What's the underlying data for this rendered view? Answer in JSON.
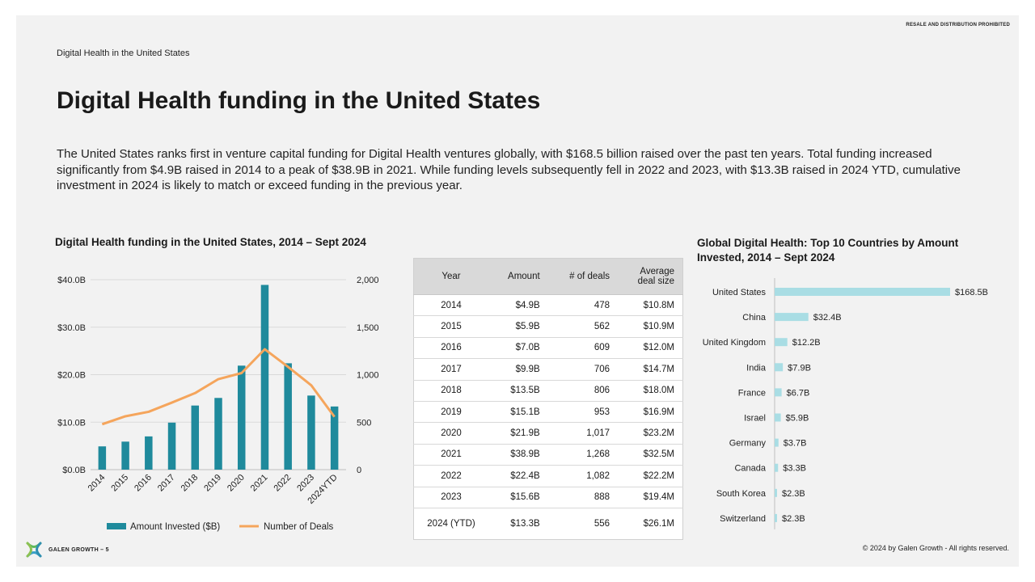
{
  "header": {
    "notice": "RESALE AND DISTRIBUTION PROHIBITED",
    "breadcrumb": "Digital Health in the United States",
    "title": "Digital Health funding in the United States",
    "description": "The United States ranks first in venture capital funding for Digital Health ventures globally, with $168.5 billion raised over the past ten years. Total funding increased significantly from $4.9B raised in 2014 to a peak of $38.9B in 2021. While funding levels subsequently fell in 2022 and 2023, with $13.3B raised in 2024 YTD, cumulative investment in 2024 is likely to match or exceed funding in the previous year."
  },
  "table": {
    "headers": [
      "Year",
      "Amount",
      "# of deals",
      "Average deal size"
    ],
    "rows": [
      [
        "2014",
        "$4.9B",
        "478",
        "$10.8M"
      ],
      [
        "2015",
        "$5.9B",
        "562",
        "$10.9M"
      ],
      [
        "2016",
        "$7.0B",
        "609",
        "$12.0M"
      ],
      [
        "2017",
        "$9.9B",
        "706",
        "$14.7M"
      ],
      [
        "2018",
        "$13.5B",
        "806",
        "$18.0M"
      ],
      [
        "2019",
        "$15.1B",
        "953",
        "$16.9M"
      ],
      [
        "2020",
        "$21.9B",
        "1,017",
        "$23.2M"
      ],
      [
        "2021",
        "$38.9B",
        "1,268",
        "$32.5M"
      ],
      [
        "2022",
        "$22.4B",
        "1,082",
        "$22.2M"
      ],
      [
        "2023",
        "$15.6B",
        "888",
        "$19.4M"
      ],
      [
        "2024 (YTD)",
        "$13.3B",
        "556",
        "$26.1M"
      ]
    ]
  },
  "footer": {
    "brand": "GALEN GROWTH – 5",
    "copyright": "© 2024 by Galen Growth  - All rights reserved."
  },
  "colors": {
    "bar": "#1f8a9c",
    "line": "#f5a55c",
    "hbar": "#a9dde4",
    "grid": "#d9d9d9"
  },
  "chart_data": [
    {
      "type": "bar",
      "title": "Digital Health funding in the United States, 2014 –  Sept 2024",
      "categories": [
        "2014",
        "2015",
        "2016",
        "2017",
        "2018",
        "2019",
        "2020",
        "2021",
        "2022",
        "2023",
        "2024YTD"
      ],
      "series": [
        {
          "name": "Amount Invested ($B)",
          "type": "bar",
          "axis": "left",
          "values": [
            4.9,
            5.9,
            7.0,
            9.9,
            13.5,
            15.1,
            21.9,
            38.9,
            22.4,
            15.6,
            13.3
          ]
        },
        {
          "name": "Number of Deals",
          "type": "line",
          "axis": "right",
          "values": [
            478,
            562,
            609,
            706,
            806,
            953,
            1017,
            1268,
            1082,
            888,
            556
          ]
        }
      ],
      "y_left": {
        "ticks": [
          "$0.0B",
          "$10.0B",
          "$20.0B",
          "$30.0B",
          "$40.0B"
        ],
        "lim": [
          0,
          40
        ]
      },
      "y_right": {
        "ticks": [
          "0",
          "500",
          "1,000",
          "1,500",
          "2,000"
        ],
        "lim": [
          0,
          2000
        ]
      },
      "grid": true,
      "legend": "bottom"
    },
    {
      "type": "bar",
      "orientation": "horizontal",
      "title": "Global Digital Health: Top 10 Countries by Amount Invested, 2014 – Sept 2024",
      "categories": [
        "United States",
        "China",
        "United Kingdom",
        "India",
        "France",
        "Israel",
        "Germany",
        "Canada",
        "South Korea",
        "Switzerland"
      ],
      "values": [
        168.5,
        32.4,
        12.2,
        7.9,
        6.7,
        5.9,
        3.7,
        3.3,
        2.3,
        2.3
      ],
      "labels": [
        "$168.5B",
        "$32.4B",
        "$12.2B",
        "$7.9B",
        "$6.7B",
        "$5.9B",
        "$3.7B",
        "$3.3B",
        "$2.3B",
        "$2.3B"
      ],
      "grid": false
    }
  ]
}
